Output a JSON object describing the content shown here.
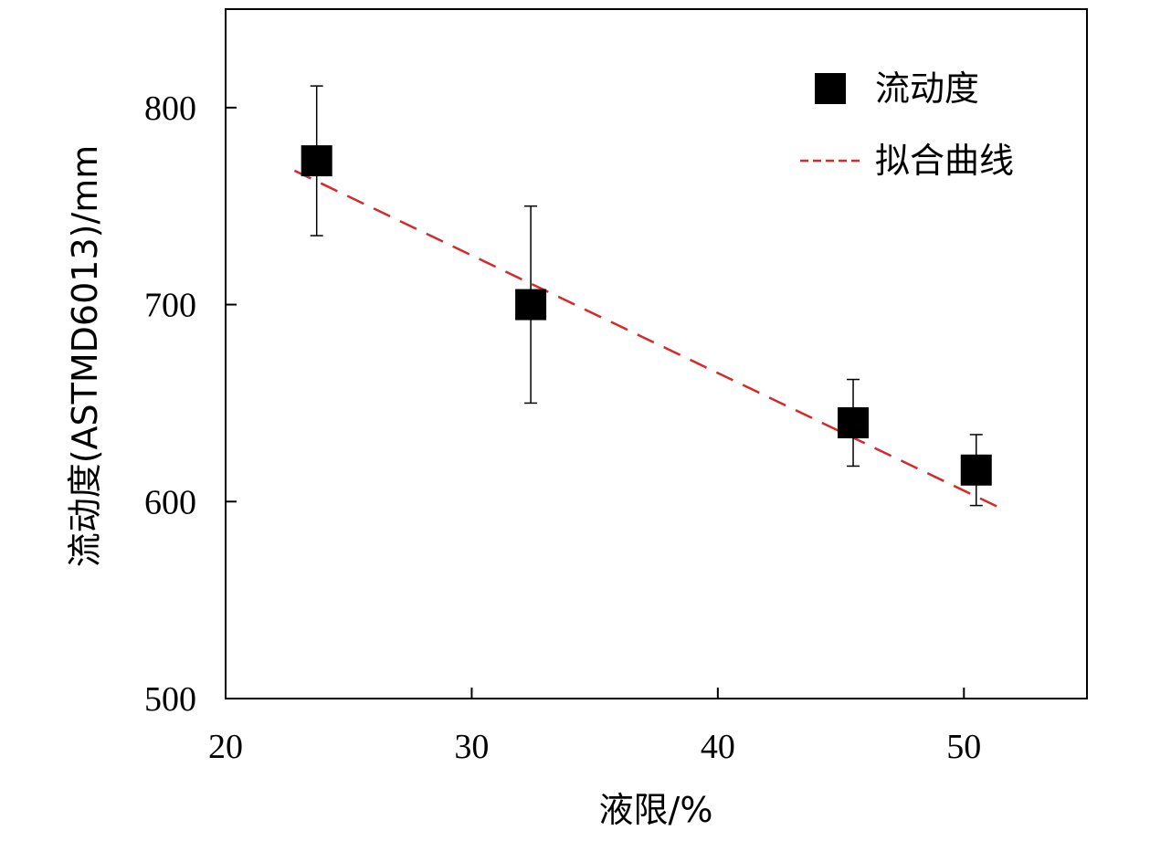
{
  "chart_data": {
    "type": "scatter",
    "title": "",
    "xlabel": "液限/%",
    "ylabel": "流动度(ASTMD6013)/mm",
    "xlim": [
      20,
      55
    ],
    "ylim": [
      500,
      850
    ],
    "xticks": [
      20,
      30,
      40,
      50
    ],
    "yticks": [
      500,
      600,
      700,
      800
    ],
    "x_tick_labels": [
      "20",
      "30",
      "40",
      "50"
    ],
    "y_tick_labels": [
      "500",
      "600",
      "700",
      "800"
    ],
    "grid": false,
    "legend_position": "top-right",
    "series": [
      {
        "name": "流动度",
        "kind": "points",
        "marker": "square",
        "color": "#000000",
        "points": [
          {
            "x": 23.7,
            "y": 773,
            "err_low": 735,
            "err_high": 811
          },
          {
            "x": 32.4,
            "y": 700,
            "err_low": 650,
            "err_high": 750
          },
          {
            "x": 45.5,
            "y": 640,
            "err_low": 618,
            "err_high": 662
          },
          {
            "x": 50.5,
            "y": 616,
            "err_low": 598,
            "err_high": 634
          }
        ]
      },
      {
        "name": "拟合曲线",
        "kind": "line",
        "style": "dashed",
        "color": "#d42a2a",
        "x": [
          22.8,
          51.6
        ],
        "y": [
          768,
          596
        ]
      }
    ]
  }
}
